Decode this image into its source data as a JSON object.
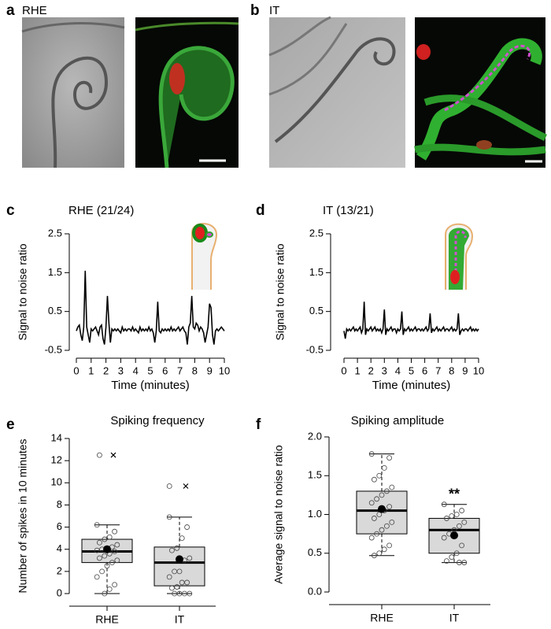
{
  "images": [
    {
      "panel": "a",
      "caption": "RHE"
    },
    {
      "panel": "b",
      "caption": "IT"
    }
  ],
  "chart_data": [
    {
      "type": "line",
      "panel": "c",
      "title": "RHE (21/24)",
      "xlabel": "Time (minutes)",
      "ylabel": "Signal to noise ratio",
      "color": "#000000",
      "xlim": [
        0,
        10
      ],
      "xticks": [
        0,
        1,
        2,
        3,
        4,
        5,
        6,
        7,
        8,
        9,
        10
      ],
      "ylim": [
        -0.5,
        2.5
      ],
      "yticks": [
        -0.5,
        0.5,
        1.5,
        2.5
      ],
      "x": [
        0,
        0.1,
        0.2,
        0.3,
        0.4,
        0.5,
        0.6,
        0.7,
        0.8,
        0.9,
        1,
        1.1,
        1.2,
        1.3,
        1.4,
        1.5,
        1.6,
        1.7,
        1.8,
        1.9,
        2,
        2.1,
        2.2,
        2.3,
        2.4,
        2.5,
        2.6,
        2.7,
        2.8,
        2.9,
        3,
        3.1,
        3.2,
        3.3,
        3.4,
        3.5,
        3.6,
        3.7,
        3.8,
        3.9,
        4,
        4.1,
        4.2,
        4.3,
        4.4,
        4.5,
        4.6,
        4.7,
        4.8,
        4.9,
        5,
        5.1,
        5.2,
        5.3,
        5.4,
        5.5,
        5.6,
        5.7,
        5.8,
        5.9,
        6,
        6.1,
        6.2,
        6.3,
        6.4,
        6.5,
        6.6,
        6.7,
        6.8,
        6.9,
        7,
        7.1,
        7.2,
        7.3,
        7.4,
        7.5,
        7.6,
        7.7,
        7.8,
        7.9,
        8,
        8.1,
        8.2,
        8.3,
        8.4,
        8.5,
        8.6,
        8.7,
        8.8,
        8.9,
        9,
        9.1,
        9.2,
        9.3,
        9.4,
        9.5,
        9.6,
        9.7,
        9.8,
        9.9,
        10
      ],
      "values": [
        0,
        0.1,
        0.15,
        -0.1,
        -0.25,
        0.1,
        1.55,
        0.1,
        -0.1,
        -0.3,
        0.05,
        0,
        0.05,
        0.1,
        0,
        -0.1,
        0.1,
        0.15,
        -0.2,
        -0.35,
        0.1,
        0.9,
        0.2,
        -0.3,
        0.05,
        0,
        0.05,
        0,
        0.05,
        0,
        -0.05,
        0.1,
        0,
        0.05,
        0,
        0.05,
        0.05,
        0,
        0.1,
        0,
        0.05,
        0,
        -0.05,
        0.1,
        0,
        0.05,
        0,
        0.05,
        0,
        0.1,
        0,
        0.05,
        -0.05,
        -0.3,
        0,
        0.75,
        0,
        -0.05,
        0.05,
        0,
        0.05,
        0,
        0.05,
        0,
        0.1,
        0,
        0.05,
        0,
        0.05,
        0.1,
        0,
        0.05,
        0.1,
        0,
        -0.05,
        -0.35,
        0.1,
        0.2,
        0.9,
        0.1,
        0.05,
        0.2,
        0.15,
        0,
        0.1,
        0.05,
        -0.05,
        -0.3,
        -0.1,
        0.1,
        0.7,
        0.6,
        -0.1,
        -0.35,
        0,
        0.05,
        0,
        0.05,
        0.1,
        0.05,
        0
      ]
    },
    {
      "type": "line",
      "panel": "d",
      "title": "IT (13/21)",
      "xlabel": "Time (minutes)",
      "ylabel": "Signal to noise ratio",
      "color": "#000000",
      "xlim": [
        0,
        10
      ],
      "xticks": [
        0,
        1,
        2,
        3,
        4,
        5,
        6,
        7,
        8,
        9,
        10
      ],
      "ylim": [
        -0.5,
        2.5
      ],
      "yticks": [
        -0.5,
        0.5,
        1.5,
        2.5
      ],
      "x": [
        0,
        0.1,
        0.2,
        0.3,
        0.4,
        0.5,
        0.6,
        0.7,
        0.8,
        0.9,
        1,
        1.1,
        1.2,
        1.3,
        1.4,
        1.5,
        1.6,
        1.7,
        1.8,
        1.9,
        2,
        2.1,
        2.2,
        2.3,
        2.4,
        2.5,
        2.6,
        2.7,
        2.8,
        2.9,
        3,
        3.1,
        3.2,
        3.3,
        3.4,
        3.5,
        3.6,
        3.7,
        3.8,
        3.9,
        4,
        4.1,
        4.2,
        4.3,
        4.4,
        4.5,
        4.6,
        4.7,
        4.8,
        4.9,
        5,
        5.1,
        5.2,
        5.3,
        5.4,
        5.5,
        5.6,
        5.7,
        5.8,
        5.9,
        6,
        6.1,
        6.2,
        6.3,
        6.4,
        6.5,
        6.6,
        6.7,
        6.8,
        6.9,
        7,
        7.1,
        7.2,
        7.3,
        7.4,
        7.5,
        7.6,
        7.7,
        7.8,
        7.9,
        8,
        8.1,
        8.2,
        8.3,
        8.4,
        8.5,
        8.6,
        8.7,
        8.8,
        8.9,
        9,
        9.1,
        9.2,
        9.3,
        9.4,
        9.5,
        9.6,
        9.7,
        9.8,
        9.9,
        10
      ],
      "values": [
        0,
        -0.2,
        0.05,
        0,
        0.05,
        0,
        0.05,
        0.1,
        0,
        0.05,
        0,
        0.05,
        0.1,
        -0.05,
        0.05,
        0.75,
        -0.1,
        0.05,
        0,
        0.05,
        0.1,
        0,
        0.05,
        0.1,
        0,
        0.05,
        0,
        0.05,
        -0.05,
        0.05,
        0.55,
        -0.1,
        0.05,
        0,
        0.05,
        0.1,
        0,
        0.05,
        0.05,
        -0.05,
        0.05,
        0,
        0.05,
        0.5,
        -0.1,
        0.05,
        0,
        0.05,
        0.1,
        0,
        0.05,
        0,
        0.05,
        0.1,
        0,
        0.05,
        0.05,
        0,
        0.05,
        0,
        0.05,
        0.1,
        0,
        0.05,
        0.45,
        -0.05,
        0.05,
        0,
        0.05,
        0.1,
        0,
        0.05,
        0,
        0.05,
        0.1,
        0,
        0.05,
        0.05,
        0,
        0.05,
        0.1,
        0,
        0.05,
        0,
        0.05,
        0.45,
        -0.1,
        0,
        0.05,
        0,
        0.05,
        0.05,
        0,
        0.05,
        0.1,
        0,
        0.05,
        0,
        0.05,
        0,
        0.05
      ]
    },
    {
      "type": "box",
      "panel": "e",
      "title": "Spiking frequency",
      "ylabel": "Number of spikes in 10 minutes",
      "color": "#d9d9d9",
      "categories": [
        "RHE",
        "IT"
      ],
      "ylim": [
        0,
        14
      ],
      "yticks": [
        0,
        2,
        4,
        6,
        8,
        10,
        12,
        14
      ],
      "boxes": [
        {
          "whislo": 0,
          "q1": 2.8,
          "med": 3.8,
          "q3": 4.9,
          "whishi": 6.2,
          "mean": 4.0,
          "points": [
            6.2,
            5.6,
            5.1,
            4.9,
            4.6,
            4.4,
            4.2,
            4.0,
            4.0,
            3.9,
            3.8,
            3.6,
            3.4,
            3.2,
            3.0,
            2.8,
            2.5,
            2.0,
            1.5,
            0.8,
            0.4,
            0.0,
            12.5
          ],
          "outliers": [
            12.5
          ]
        },
        {
          "whislo": 0,
          "q1": 0.7,
          "med": 2.8,
          "q3": 4.2,
          "whishi": 6.9,
          "mean": 3.1,
          "points": [
            6.9,
            6.0,
            5.0,
            4.1,
            3.9,
            3.2,
            3.0,
            2.0,
            2.0,
            1.5,
            1.0,
            1.0,
            0.6,
            0.5,
            0.0,
            0.0,
            0.0,
            0.0,
            9.7
          ],
          "outliers": [
            9.7
          ]
        }
      ]
    },
    {
      "type": "box",
      "panel": "f",
      "title": "Spiking amplitude",
      "ylabel": "Average signal to noise ratio",
      "color": "#d9d9d9",
      "categories": [
        "RHE",
        "IT"
      ],
      "ylim": [
        0,
        2
      ],
      "yticks": [
        {
          "value": 0,
          "label": "0.0"
        },
        0.5,
        {
          "value": 1,
          "label": "1.0"
        },
        1.5,
        {
          "value": 2,
          "label": "2.0"
        }
      ],
      "boxes": [
        {
          "whislo": 0.47,
          "q1": 0.75,
          "med": 1.05,
          "q3": 1.3,
          "whishi": 1.78,
          "mean": 1.07,
          "points": [
            1.78,
            1.73,
            1.6,
            1.5,
            1.45,
            1.35,
            1.3,
            1.25,
            1.2,
            1.15,
            1.1,
            1.05,
            1.0,
            0.95,
            0.9,
            0.85,
            0.8,
            0.75,
            0.7,
            0.6,
            0.55,
            0.5,
            0.47
          ],
          "outliers": []
        },
        {
          "whislo": 0.38,
          "q1": 0.5,
          "med": 0.8,
          "q3": 0.95,
          "whishi": 1.13,
          "mean": 0.73,
          "points": [
            1.13,
            1.05,
            1.0,
            0.98,
            0.95,
            0.9,
            0.85,
            0.8,
            0.75,
            0.7,
            0.6,
            0.5,
            0.45,
            0.4,
            0.38,
            0.38
          ],
          "outliers": [],
          "annotation": "**"
        }
      ]
    }
  ]
}
